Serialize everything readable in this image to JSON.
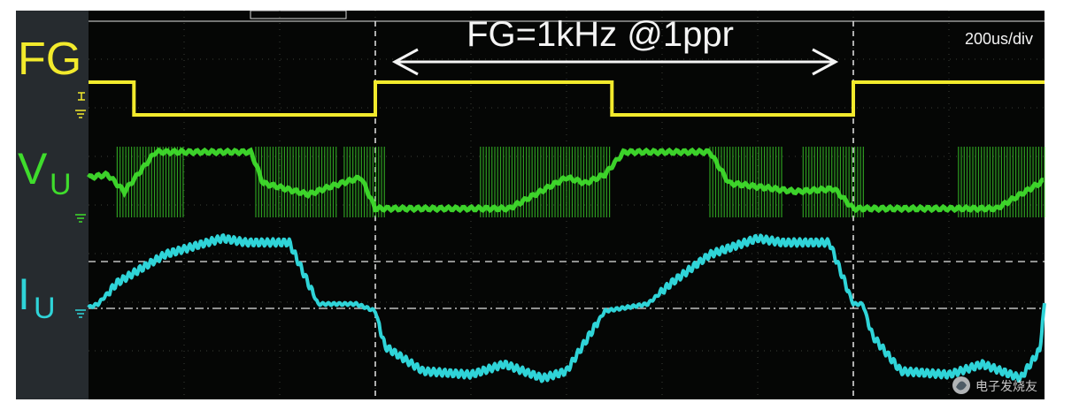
{
  "chart_data": {
    "type": "line",
    "title": "FG=1kHz @1ppr",
    "timebase": "200us/div",
    "xlabel": "",
    "ylabel": "",
    "grid": true,
    "x_unit": "us",
    "x_range": [
      0,
      2000
    ],
    "period_annotation": {
      "label": "FG=1kHz @1ppr",
      "from_us": 600,
      "to_us": 1600
    },
    "cursor_times_us": [
      600,
      1600
    ],
    "series": [
      {
        "name": "FG",
        "color": "#f2ea2c",
        "kind": "square",
        "levels": [
          "high",
          "low"
        ],
        "transitions_us": [
          95,
          600,
          1095,
          1600
        ],
        "points": [
          [
            0,
            1
          ],
          [
            95,
            1
          ],
          [
            95,
            0
          ],
          [
            600,
            0
          ],
          [
            600,
            1
          ],
          [
            1095,
            1
          ],
          [
            1095,
            0
          ],
          [
            1600,
            0
          ],
          [
            1600,
            1
          ],
          [
            2000,
            1
          ]
        ]
      },
      {
        "name": "VU",
        "color": "#3fdc2c",
        "kind": "pwm",
        "points": [
          [
            0,
            0.55
          ],
          [
            40,
            0.6
          ],
          [
            75,
            0.3
          ],
          [
            140,
            1
          ],
          [
            340,
            1
          ],
          [
            365,
            0.45
          ],
          [
            460,
            0.25
          ],
          [
            510,
            0.4
          ],
          [
            570,
            0.55
          ],
          [
            600,
            0
          ],
          [
            880,
            0
          ],
          [
            1000,
            0.55
          ],
          [
            1040,
            0.45
          ],
          [
            1080,
            0.6
          ],
          [
            1120,
            1
          ],
          [
            1300,
            1
          ],
          [
            1340,
            0.45
          ],
          [
            1480,
            0.3
          ],
          [
            1560,
            0.35
          ],
          [
            1600,
            0
          ],
          [
            1900,
            0
          ],
          [
            2000,
            0.5
          ]
        ],
        "pwm_bands": [
          [
            60,
            200
          ],
          [
            350,
            520
          ],
          [
            535,
            620
          ],
          [
            820,
            1090
          ],
          [
            1300,
            1450
          ],
          [
            1495,
            1625
          ],
          [
            1820,
            2000
          ]
        ]
      },
      {
        "name": "IU",
        "color": "#2fd4d8",
        "kind": "ripple",
        "points": [
          [
            0,
            0
          ],
          [
            20,
            0.05
          ],
          [
            60,
            0.35
          ],
          [
            160,
            0.75
          ],
          [
            280,
            0.98
          ],
          [
            330,
            0.92
          ],
          [
            420,
            0.92
          ],
          [
            480,
            0.05
          ],
          [
            560,
            0.05
          ],
          [
            600,
            -0.05
          ],
          [
            620,
            -0.55
          ],
          [
            700,
            -0.9
          ],
          [
            800,
            -0.95
          ],
          [
            870,
            -0.8
          ],
          [
            950,
            -1
          ],
          [
            1000,
            -0.9
          ],
          [
            1080,
            -0.05
          ],
          [
            1170,
            0.05
          ],
          [
            1220,
            0.35
          ],
          [
            1300,
            0.75
          ],
          [
            1400,
            0.98
          ],
          [
            1450,
            0.92
          ],
          [
            1550,
            0.92
          ],
          [
            1600,
            0.05
          ],
          [
            1620,
            0.05
          ],
          [
            1640,
            -0.4
          ],
          [
            1700,
            -0.9
          ],
          [
            1800,
            -0.95
          ],
          [
            1870,
            -0.8
          ],
          [
            1950,
            -1
          ],
          [
            1990,
            -0.6
          ],
          [
            2000,
            0.05
          ]
        ]
      }
    ],
    "channel_labels": [
      {
        "main": "FG",
        "sub": "",
        "color": "#f2ea2c"
      },
      {
        "main": "V",
        "sub": "U",
        "color": "#3fdc2c"
      },
      {
        "main": "I",
        "sub": "U",
        "color": "#2fd4d8"
      }
    ],
    "watermark": "电子发烧友"
  }
}
